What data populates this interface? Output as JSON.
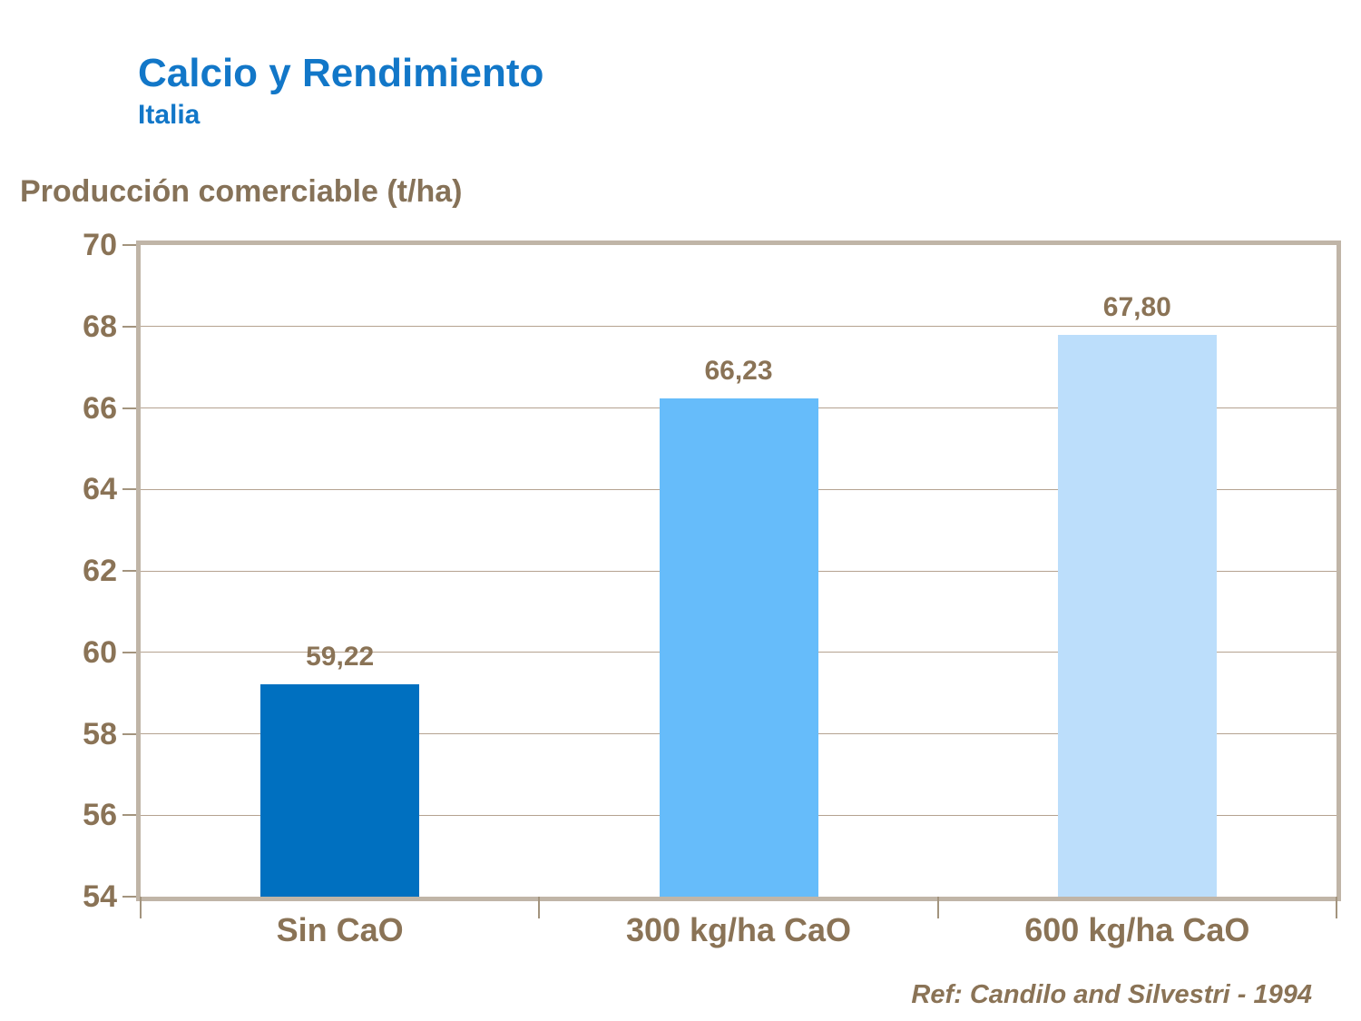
{
  "header": {
    "title": "Calcio y Rendimiento",
    "subtitle": "Italia"
  },
  "chart_data": {
    "type": "bar",
    "title": "Calcio y Rendimiento",
    "subtitle": "Italia",
    "categories": [
      "Sin CaO",
      "300 kg/ha CaO",
      "600 kg/ha CaO"
    ],
    "values": [
      59.22,
      66.23,
      67.8
    ],
    "value_labels": [
      "59,22",
      "66,23",
      "67,80"
    ],
    "xlabel": "",
    "ylabel": "Producción comerciable (t/ha)",
    "ylim": [
      54,
      70
    ],
    "ytick_step": 2,
    "ytick_labels": [
      "54",
      "56",
      "58",
      "60",
      "62",
      "64",
      "66",
      "68",
      "70"
    ],
    "grid": true,
    "legend_position": "none",
    "bar_colors": [
      "#0070c0",
      "#66bcfa",
      "#bcdefb"
    ]
  },
  "footer": {
    "reference": "Ref: Candilo and Silvestri - 1994"
  },
  "colors": {
    "title_blue": "#1277c8",
    "text_brown": "#8a7356",
    "axis_title_brown": "#867258",
    "frame_tan": "#c0b5a7",
    "gridline_tan": "#b5a290",
    "tick_tan": "#a3947e",
    "background": "#ffffff"
  }
}
